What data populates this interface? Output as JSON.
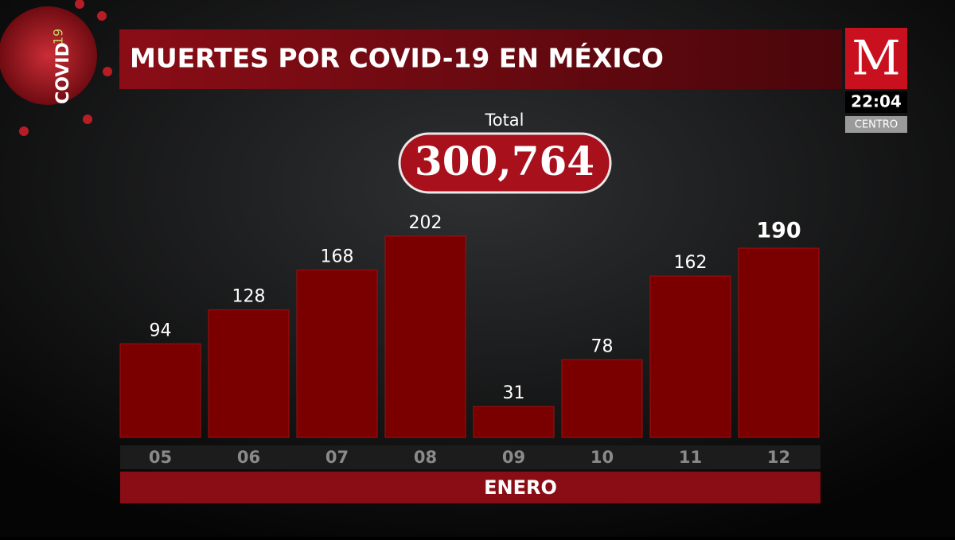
{
  "brand": {
    "covid": "COVID",
    "covid_number": "19",
    "logo": "M",
    "time": "22:04",
    "zone": "CENTRO"
  },
  "chart_data": {
    "type": "bar",
    "title": "MUERTES POR COVID-19 EN MÉXICO",
    "total_label": "Total",
    "total": "300,764",
    "categories": [
      "05",
      "06",
      "07",
      "08",
      "09",
      "10",
      "11",
      "12"
    ],
    "values": [
      94,
      128,
      168,
      202,
      31,
      78,
      162,
      190
    ],
    "x_label": "ENERO",
    "color": "#7a0000"
  }
}
